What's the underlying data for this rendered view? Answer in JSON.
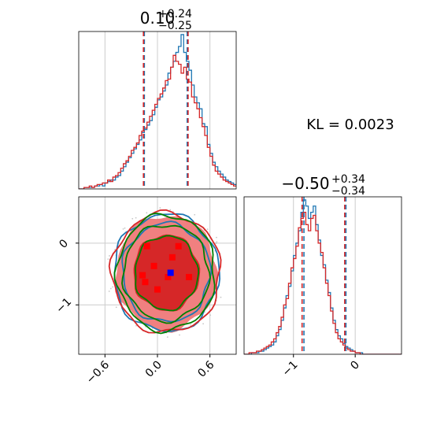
{
  "chart_data": {
    "type": "corner",
    "annotation": "KL = 0.0023",
    "colors": {
      "series_a": "#1f77b4",
      "series_b": "#d62728",
      "contour_green": "#008000",
      "marker_blue": "#0000ff",
      "marker_red": "#ff0000",
      "grid": "#cccccc"
    },
    "parameters": [
      {
        "title": {
          "value": "0.10",
          "sup": "+0.24",
          "sub": "−0.25"
        },
        "range": [
          -0.9,
          0.9
        ],
        "ticks": [
          -0.6,
          0.0,
          0.6
        ],
        "tick_labels": [
          "−0.6",
          "0.0",
          "0.6"
        ],
        "quantile_lines": [
          {
            "series": "series_a",
            "x": -0.15
          },
          {
            "series": "series_a",
            "x": 0.34
          },
          {
            "series": "series_b",
            "x": -0.16
          },
          {
            "series": "series_b",
            "x": 0.35
          }
        ]
      },
      {
        "title": {
          "value": "−0.50",
          "sup": "+0.34",
          "sub": "−0.34"
        },
        "range": [
          -1.8,
          0.75
        ],
        "ticks": [
          -1.0,
          0.0
        ],
        "tick_labels": [
          "−1",
          "0"
        ],
        "quantile_lines": [
          {
            "series": "series_a",
            "x": -0.83
          },
          {
            "series": "series_a",
            "x": -0.15
          },
          {
            "series": "series_b",
            "x": -0.86
          },
          {
            "series": "series_b",
            "x": -0.17
          }
        ]
      }
    ],
    "joint": {
      "xrange": [
        -0.9,
        0.9
      ],
      "yrange": [
        -1.8,
        0.75
      ],
      "xticks": [
        -0.6,
        0.0,
        0.6
      ],
      "yticks": [
        0,
        -1
      ],
      "ytick_labels": [
        "0",
        "−1"
      ],
      "center": [
        0.1,
        -0.48
      ],
      "ellipses": [
        {
          "series": "series_b",
          "kind": "fill",
          "color": "#f08080",
          "rx": 0.58,
          "ry": 0.93
        },
        {
          "series": "series_b",
          "kind": "fill",
          "color": "#d62728",
          "rx": 0.38,
          "ry": 0.62
        },
        {
          "series": "series_a",
          "kind": "line",
          "rx": 0.6,
          "ry": 0.95
        },
        {
          "series": "series_a",
          "kind": "line",
          "rx": 0.5,
          "ry": 0.8
        },
        {
          "series": "series_b",
          "kind": "line",
          "rx": 0.62,
          "ry": 0.97
        },
        {
          "series": "contour_green",
          "kind": "line",
          "rx": 0.56,
          "ry": 0.94
        },
        {
          "series": "contour_green",
          "kind": "line",
          "rx": 0.49,
          "ry": 0.78
        },
        {
          "series": "contour_green",
          "kind": "line",
          "rx": 0.36,
          "ry": 0.6
        }
      ],
      "red_markers": [
        [
          -0.12,
          -0.05
        ],
        [
          0.24,
          -0.05
        ],
        [
          0.17,
          -0.23
        ],
        [
          -0.04,
          -0.37
        ],
        [
          -0.17,
          -0.52
        ],
        [
          -0.14,
          -0.63
        ],
        [
          0.36,
          -0.55
        ],
        [
          0.12,
          -0.55
        ],
        [
          0.0,
          -0.75
        ]
      ],
      "blue_marker": [
        0.15,
        -0.48
      ]
    },
    "histograms": [
      {
        "bin_start": -0.9,
        "bin_width": 0.03,
        "series": [
          {
            "name": "",
            "color_key": "series_a",
            "counts": [
              0,
              0,
              1,
              1,
              1,
              1,
              2,
              2,
              3,
              2,
              4,
              5,
              6,
              6,
              8,
              9,
              12,
              15,
              18,
              21,
              24,
              27,
              30,
              33,
              38,
              40,
              43,
              46,
              50,
              55,
              60,
              62,
              66,
              70,
              78,
              82,
              86,
              92,
              96,
              104,
              92,
              86,
              80,
              70,
              62,
              58,
              54,
              44,
              42,
              30,
              24,
              18,
              15,
              12,
              10,
              8,
              6,
              5,
              4,
              3,
              3,
              2,
              2,
              1,
              1,
              1,
              1,
              0,
              0,
              0
            ]
          },
          {
            "name": "",
            "color_key": "series_b",
            "counts": [
              0,
              0,
              1,
              1,
              2,
              1,
              2,
              3,
              3,
              4,
              4,
              6,
              5,
              8,
              9,
              11,
              14,
              17,
              19,
              22,
              26,
              28,
              31,
              36,
              39,
              41,
              45,
              49,
              53,
              57,
              61,
              64,
              68,
              73,
              74,
              82,
              90,
              86,
              84,
              78,
              82,
              74,
              72,
              62,
              58,
              54,
              48,
              42,
              36,
              28,
              22,
              16,
              12,
              10,
              8,
              6,
              5,
              4,
              3,
              2,
              2,
              1,
              1,
              1,
              1,
              0,
              0,
              0,
              0,
              0
            ]
          }
        ]
      },
      {
        "bin_start": -1.8,
        "bin_width": 0.04,
        "series": [
          {
            "name": "",
            "color_key": "series_a",
            "counts": [
              0,
              0,
              0,
              1,
              1,
              1,
              2,
              2,
              3,
              4,
              5,
              6,
              8,
              12,
              16,
              22,
              30,
              38,
              44,
              54,
              64,
              72,
              80,
              92,
              100,
              96,
              88,
              92,
              96,
              84,
              74,
              64,
              58,
              48,
              40,
              30,
              22,
              16,
              12,
              10,
              7,
              5,
              4,
              3,
              2,
              1,
              1,
              1,
              0,
              0,
              0,
              0,
              0,
              0,
              0,
              0,
              0,
              0,
              0,
              0,
              0,
              0,
              0,
              0
            ]
          },
          {
            "name": "",
            "color_key": "series_b",
            "counts": [
              0,
              0,
              1,
              1,
              1,
              2,
              2,
              3,
              4,
              5,
              6,
              8,
              10,
              14,
              18,
              24,
              32,
              36,
              46,
              56,
              62,
              70,
              82,
              88,
              92,
              84,
              80,
              88,
              90,
              80,
              72,
              66,
              56,
              46,
              38,
              28,
              20,
              14,
              10,
              8,
              6,
              4,
              3,
              2,
              2,
              1,
              1,
              0,
              0,
              0,
              0,
              0,
              0,
              0,
              0,
              0,
              0,
              0,
              0,
              0,
              0,
              0,
              0,
              0
            ]
          }
        ]
      }
    ]
  }
}
